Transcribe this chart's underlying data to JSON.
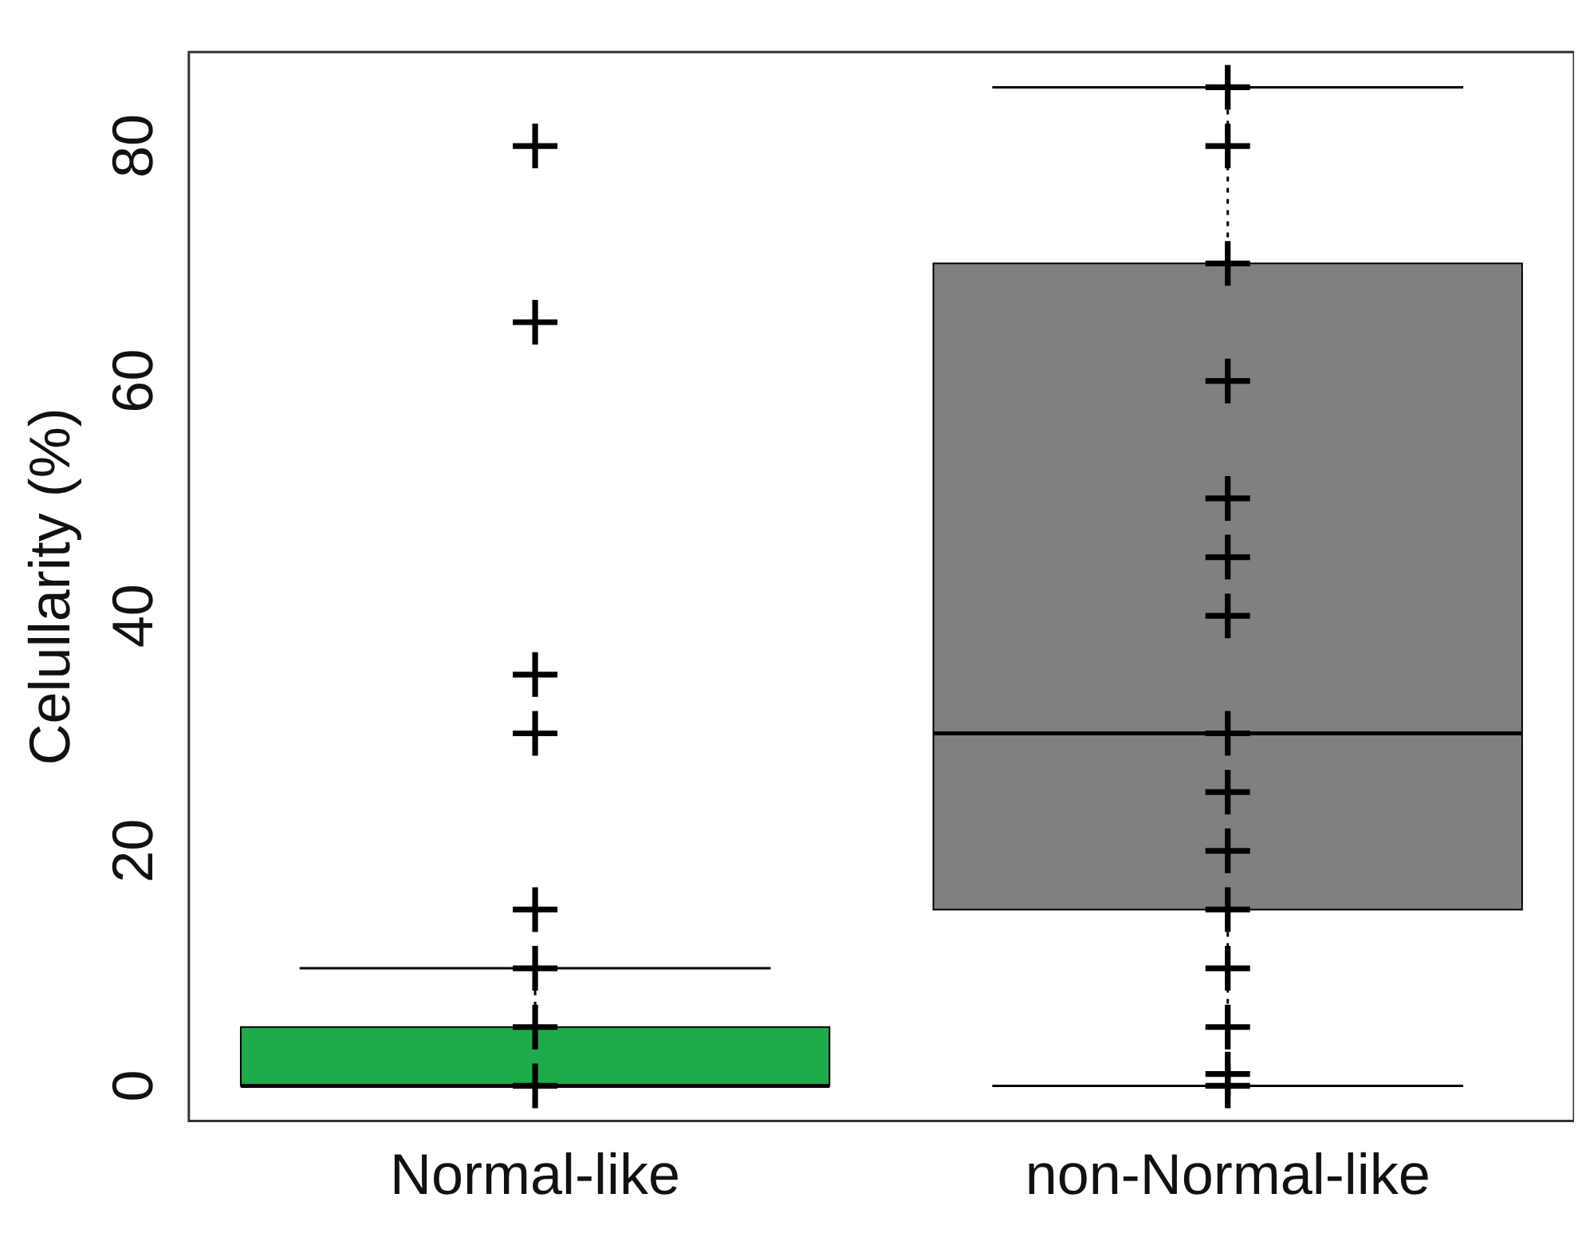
{
  "chart_data": {
    "type": "box",
    "ylabel": "Celullarity (%)",
    "categories": [
      "Normal-like",
      "non-Normal-like"
    ],
    "colors": [
      "#1faa4b",
      "#808080"
    ],
    "boxes": [
      {
        "low": 0,
        "q1": 0,
        "median": 0,
        "q3": 5,
        "high": 10
      },
      {
        "low": 0,
        "q1": 15,
        "median": 30,
        "q3": 70,
        "high": 85
      }
    ],
    "ylim": [
      -3,
      88
    ],
    "yticks": [
      0,
      20,
      40,
      60,
      80
    ],
    "grid": false,
    "marker": "cross",
    "series": [
      {
        "type": "scatter",
        "color": "#000000",
        "x": [
          "Normal-like",
          "Normal-like",
          "Normal-like",
          "Normal-like",
          "Normal-like",
          "Normal-like",
          "Normal-like",
          "Normal-like",
          "non-Normal-like",
          "non-Normal-like",
          "non-Normal-like",
          "non-Normal-like",
          "non-Normal-like",
          "non-Normal-like",
          "non-Normal-like",
          "non-Normal-like",
          "non-Normal-like",
          "non-Normal-like",
          "non-Normal-like",
          "non-Normal-like",
          "non-Normal-like",
          "non-Normal-like",
          "non-Normal-like"
        ],
        "values": [
          80,
          65,
          35,
          30,
          15,
          10,
          5,
          0,
          85,
          80,
          70,
          60,
          50,
          45,
          40,
          30,
          25,
          20,
          15,
          10,
          5,
          1,
          0
        ]
      }
    ]
  }
}
